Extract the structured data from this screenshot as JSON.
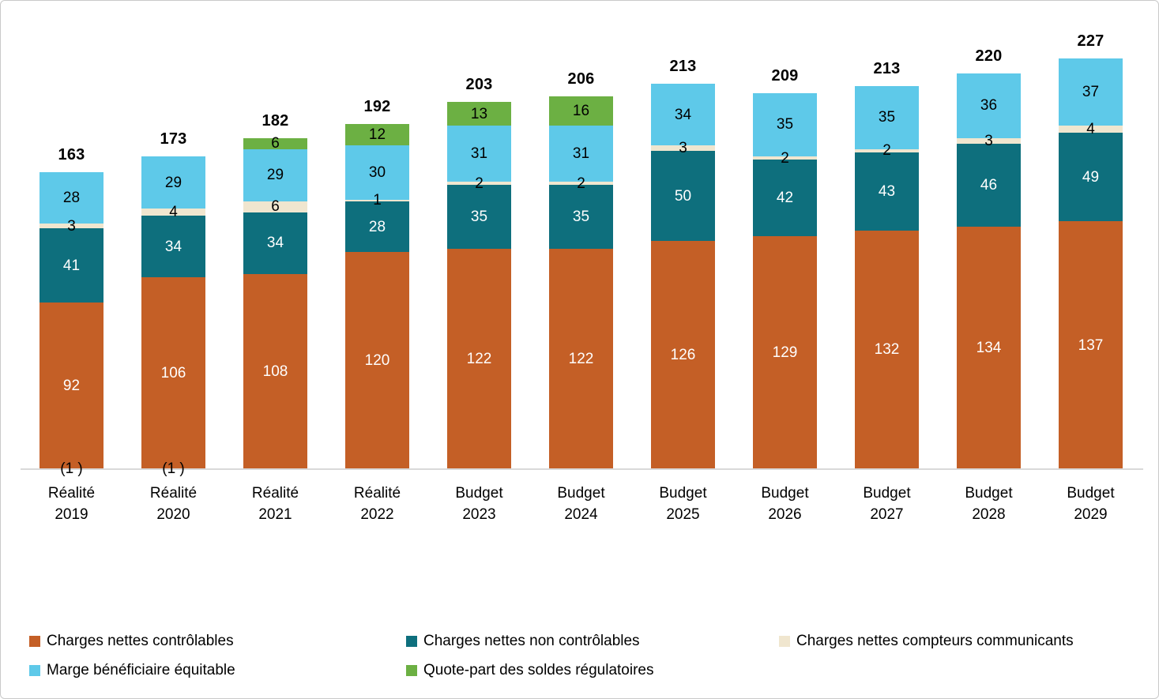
{
  "chart_data": {
    "type": "bar",
    "stacked": true,
    "title": "",
    "xlabel": "",
    "ylabel": "",
    "ylim": [
      0,
      240
    ],
    "grid": false,
    "legend_position": "bottom",
    "axis_color": "#D9D9D9",
    "categories": [
      {
        "label": "Réalité",
        "year": "2019",
        "note": "(1 )"
      },
      {
        "label": "Réalité",
        "year": "2020",
        "note": "(1 )"
      },
      {
        "label": "Réalité",
        "year": "2021",
        "note": ""
      },
      {
        "label": "Réalité",
        "year": "2022",
        "note": ""
      },
      {
        "label": "Budget",
        "year": "2023",
        "note": ""
      },
      {
        "label": "Budget",
        "year": "2024",
        "note": ""
      },
      {
        "label": "Budget",
        "year": "2025",
        "note": ""
      },
      {
        "label": "Budget",
        "year": "2026",
        "note": ""
      },
      {
        "label": "Budget",
        "year": "2027",
        "note": ""
      },
      {
        "label": "Budget",
        "year": "2028",
        "note": ""
      },
      {
        "label": "Budget",
        "year": "2029",
        "note": ""
      }
    ],
    "totals": [
      163,
      173,
      182,
      192,
      203,
      206,
      213,
      209,
      213,
      220,
      227
    ],
    "series": [
      {
        "name": "Charges nettes contrôlables",
        "color": "#C45F26",
        "label_color": "#FFFFFF",
        "values": [
          92,
          106,
          108,
          120,
          122,
          122,
          126,
          129,
          132,
          134,
          137
        ]
      },
      {
        "name": "Charges nettes non contrôlables",
        "color": "#0E6F7D",
        "label_color": "#FFFFFF",
        "values": [
          41,
          34,
          34,
          28,
          35,
          35,
          50,
          42,
          43,
          46,
          49
        ]
      },
      {
        "name": "Charges nettes compteurs communicants",
        "color": "#F0E6CF",
        "label_color": "#000000",
        "values": [
          3,
          4,
          6,
          1,
          2,
          2,
          3,
          2,
          2,
          3,
          4
        ]
      },
      {
        "name": "Marge bénéficiaire équitable",
        "color": "#5EC9E9",
        "label_color": "#000000",
        "values": [
          28,
          29,
          29,
          30,
          31,
          31,
          34,
          35,
          35,
          36,
          37
        ]
      },
      {
        "name": "Quote-part des soldes régulatoires",
        "color": "#6CB043",
        "label_color": "#000000",
        "values": [
          0,
          0,
          6,
          12,
          13,
          16,
          0,
          0,
          0,
          0,
          0
        ]
      }
    ]
  }
}
